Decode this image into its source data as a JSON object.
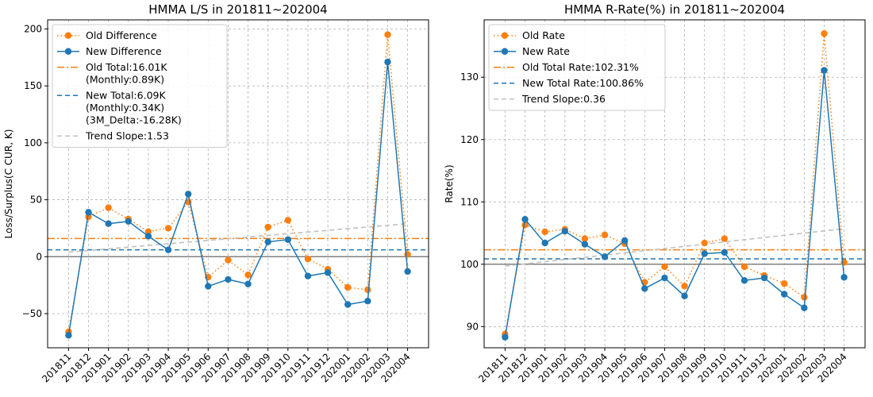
{
  "chart_data": [
    {
      "type": "line",
      "title": "HMMA L/S in 201811~202004",
      "xlabel": "",
      "ylabel": "Loss/Surplus(C CUR, K)",
      "ylim": [
        -80,
        208
      ],
      "yticks": [
        -50,
        0,
        50,
        100,
        150,
        200
      ],
      "categories": [
        "201811",
        "201812",
        "201901",
        "201902",
        "201903",
        "201904",
        "201905",
        "201906",
        "201907",
        "201908",
        "201909",
        "201910",
        "201911",
        "201912",
        "202001",
        "202002",
        "202003",
        "202004"
      ],
      "grid": true,
      "legend_position": "top-left",
      "series": [
        {
          "name": "Old Difference",
          "color": "#ff7f0e",
          "style": "dotted-marker",
          "values": [
            -66,
            35,
            43,
            33,
            22,
            25,
            48,
            -18,
            -3,
            -16,
            26,
            32,
            -2,
            -11,
            -27,
            -29,
            195,
            2
          ]
        },
        {
          "name": "New Difference",
          "color": "#1f77b4",
          "style": "solid-marker",
          "values": [
            -69,
            39,
            29,
            31,
            18,
            6,
            55,
            -26,
            -20,
            -24,
            13,
            15,
            -17,
            -14,
            -42,
            -39,
            171,
            -13
          ]
        }
      ],
      "hlines": [
        {
          "name": "Old Total:16.01K\n(Monthly:0.89K)",
          "value": 16,
          "color": "#ff7f0e",
          "style": "dashdot"
        },
        {
          "name": "New Total:6.09K\n(Monthly:0.34K)\n(3M_Delta:-16.28K)",
          "value": 6,
          "color": "#1f77b4",
          "style": "dashed"
        },
        {
          "name": "",
          "value": 0,
          "color": "#808080",
          "style": "solid"
        }
      ],
      "trend": {
        "name": "Trend Slope:1.53",
        "start": 4,
        "end": 29,
        "color": "#c0c0c0"
      }
    },
    {
      "type": "line",
      "title": "HMMA R-Rate(%) in 201811~202004",
      "xlabel": "",
      "ylabel": "Rate(%)",
      "ylim": [
        86.6,
        139.2
      ],
      "yticks": [
        90,
        100,
        110,
        120,
        130
      ],
      "categories": [
        "201811",
        "201812",
        "201901",
        "201902",
        "201903",
        "201904",
        "201905",
        "201906",
        "201907",
        "201908",
        "201909",
        "201910",
        "201911",
        "201912",
        "202001",
        "202002",
        "202003",
        "202004"
      ],
      "grid": true,
      "legend_position": "top-left",
      "series": [
        {
          "name": "Old Rate",
          "color": "#ff7f0e",
          "style": "dotted-marker",
          "values": [
            88.8,
            106.3,
            105.2,
            105.6,
            104.1,
            104.7,
            103.3,
            97.1,
            99.6,
            96.5,
            103.4,
            104.1,
            99.6,
            98.2,
            96.9,
            94.7,
            137.0,
            100.3
          ]
        },
        {
          "name": "New Rate",
          "color": "#1f77b4",
          "style": "solid-marker",
          "values": [
            88.3,
            107.2,
            103.4,
            105.3,
            103.2,
            101.2,
            103.8,
            96.1,
            97.8,
            94.9,
            101.7,
            101.9,
            97.4,
            97.8,
            95.2,
            93.0,
            131.1,
            97.9
          ]
        }
      ],
      "hlines": [
        {
          "name": "Old Total Rate:102.31%",
          "value": 102.31,
          "color": "#ff7f0e",
          "style": "dashdot"
        },
        {
          "name": "New Total Rate:100.86%",
          "value": 100.86,
          "color": "#1f77b4",
          "style": "dashed"
        },
        {
          "name": "",
          "value": 100,
          "color": "#808080",
          "style": "solid"
        }
      ],
      "trend": {
        "name": "Trend Slope:0.36",
        "start": 99.7,
        "end": 105.7,
        "color": "#c0c0c0"
      }
    }
  ]
}
